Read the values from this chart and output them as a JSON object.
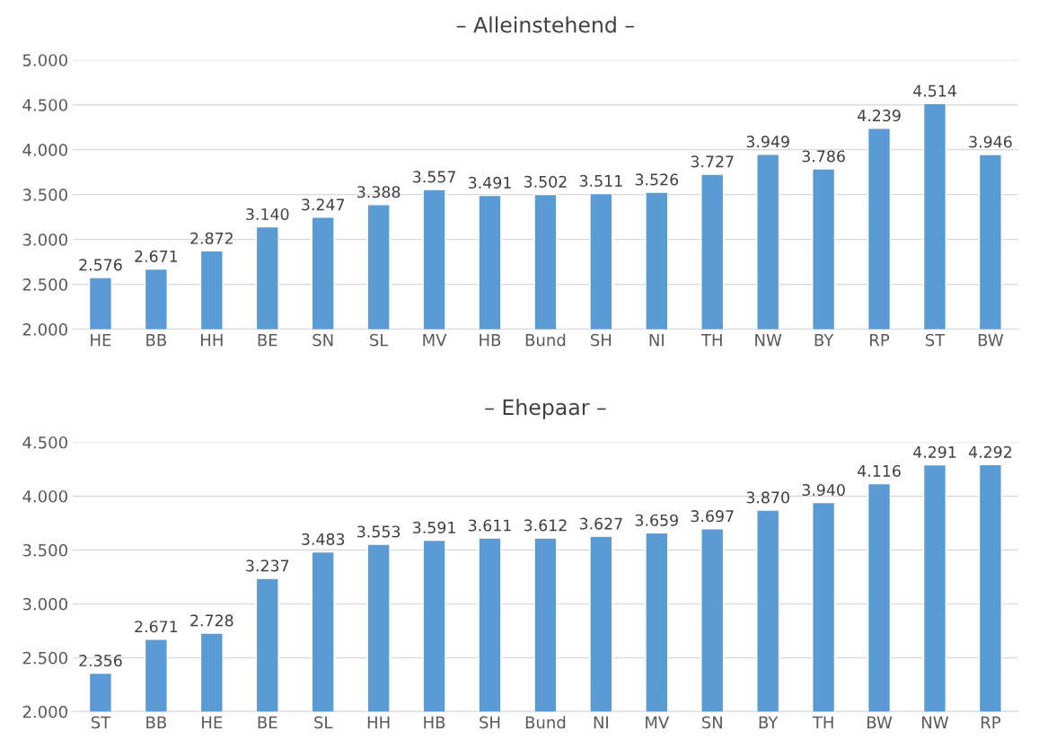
{
  "chart_data": [
    {
      "type": "bar",
      "title": "– Alleinstehend –",
      "categories": [
        "HE",
        "BB",
        "HH",
        "BE",
        "SN",
        "SL",
        "MV",
        "HB",
        "Bund",
        "SH",
        "NI",
        "TH",
        "NW",
        "BY",
        "RP",
        "ST",
        "BW"
      ],
      "values": [
        2576,
        2671,
        2872,
        3140,
        3247,
        3388,
        3557,
        3491,
        3502,
        3511,
        3526,
        3727,
        3949,
        3786,
        4239,
        4514,
        3946
      ],
      "value_labels": [
        "2.576",
        "2.671",
        "2.872",
        "3.140",
        "3.247",
        "3.388",
        "3.557",
        "3.491",
        "3.502",
        "3.511",
        "3.526",
        "3.727",
        "3.949",
        "3.786",
        "4.239",
        "4.514",
        "3.946"
      ],
      "color": "#5b9bd5",
      "ylim": [
        2000,
        5000
      ],
      "yticks": [
        {
          "value": 2000,
          "label": "2.000"
        },
        {
          "value": 2500,
          "label": "2.500"
        },
        {
          "value": 3000,
          "label": "3.000"
        },
        {
          "value": 3500,
          "label": "3.500"
        },
        {
          "value": 4000,
          "label": "4.000"
        },
        {
          "value": 4500,
          "label": "4.500"
        },
        {
          "value": 5000,
          "label": "5.000"
        }
      ],
      "grid": "y"
    },
    {
      "type": "bar",
      "title": "– Ehepaar –",
      "categories": [
        "ST",
        "BB",
        "HE",
        "BE",
        "SL",
        "HH",
        "HB",
        "SH",
        "Bund",
        "NI",
        "MV",
        "SN",
        "BY",
        "TH",
        "BW",
        "NW",
        "RP"
      ],
      "values": [
        2356,
        2671,
        2728,
        3237,
        3483,
        3553,
        3591,
        3611,
        3612,
        3627,
        3659,
        3697,
        3870,
        3940,
        4116,
        4291,
        4292
      ],
      "value_labels": [
        "2.356",
        "2.671",
        "2.728",
        "3.237",
        "3.483",
        "3.553",
        "3.591",
        "3.611",
        "3.612",
        "3.627",
        "3.659",
        "3.697",
        "3.870",
        "3.940",
        "4.116",
        "4.291",
        "4.292"
      ],
      "color": "#5b9bd5",
      "ylim": [
        2000,
        4500
      ],
      "yticks": [
        {
          "value": 2000,
          "label": "2.000"
        },
        {
          "value": 2500,
          "label": "2.500"
        },
        {
          "value": 3000,
          "label": "3.000"
        },
        {
          "value": 3500,
          "label": "3.500"
        },
        {
          "value": 4000,
          "label": "4.000"
        },
        {
          "value": 4500,
          "label": "4.500"
        }
      ],
      "grid": "y"
    }
  ]
}
